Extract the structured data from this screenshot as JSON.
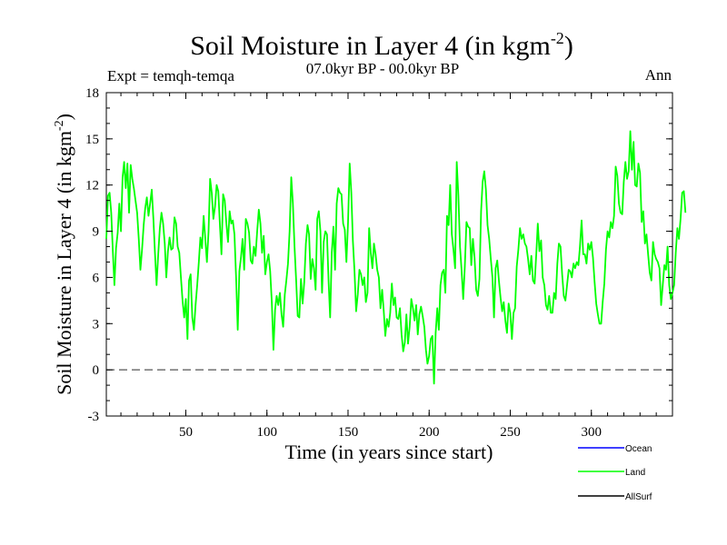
{
  "chart_data": {
    "type": "line",
    "title": "Soil Moisture in Layer 4 (in kgm",
    "title_superscript": "-2",
    "title_close": ")",
    "subtitle": "07.0kyr BP - 00.0kyr BP",
    "left_label": "Expt = temqh-temqa",
    "right_label": "Ann",
    "xlabel": "Time (in years since start)",
    "ylabel": "Soil Moisture in Layer 4 (in kgm",
    "ylabel_superscript": "-2",
    "ylabel_close": ")",
    "xlim": [
      1,
      350
    ],
    "ylim": [
      -3,
      18
    ],
    "xticks": [
      50,
      100,
      150,
      200,
      250,
      300
    ],
    "yticks": [
      -3,
      0,
      3,
      6,
      9,
      12,
      15,
      18
    ],
    "reference_line": 0,
    "legend": [
      {
        "name": "Ocean",
        "color": "#0000ff"
      },
      {
        "name": "Land",
        "color": "#00ff00"
      },
      {
        "name": "AllSurf",
        "color": "#000000"
      }
    ],
    "series": [
      {
        "name": "Land",
        "color": "#00ff00",
        "x_start": 1,
        "x_step": 1,
        "values": [
          8.5,
          11.3,
          11.5,
          10.2,
          7.8,
          5.5,
          7.9,
          8.9,
          10.8,
          9.0,
          12.5,
          13.5,
          11.8,
          13.4,
          10.2,
          13.3,
          12.4,
          11.8,
          11.0,
          10.2,
          8.5,
          6.5,
          7.8,
          9.4,
          10.5,
          11.2,
          10.0,
          10.8,
          11.7,
          9.8,
          7.5,
          5.5,
          7.5,
          9.2,
          10.2,
          9.5,
          8.2,
          6.0,
          7.7,
          8.6,
          7.8,
          7.9,
          9.9,
          9.5,
          8.0,
          7.6,
          6.0,
          4.5,
          3.4,
          4.6,
          2.0,
          5.8,
          6.2,
          3.4,
          2.6,
          4.2,
          5.5,
          7.0,
          8.6,
          7.9,
          10.0,
          8.5,
          7.0,
          9.0,
          12.4,
          11.5,
          9.8,
          10.6,
          12.0,
          11.6,
          9.4,
          7.5,
          11.4,
          11.0,
          9.5,
          8.3,
          10.3,
          9.5,
          9.7,
          8.8,
          6.0,
          2.6,
          6.4,
          7.3,
          8.5,
          6.5,
          9.8,
          9.5,
          8.9,
          7.1,
          6.9,
          8.0,
          7.4,
          9.0,
          10.4,
          9.5,
          7.6,
          8.7,
          6.2,
          7.0,
          7.5,
          6.4,
          4.4,
          1.3,
          3.9,
          4.8,
          4.2,
          5.0,
          3.6,
          2.8,
          4.9,
          5.8,
          6.9,
          9.0,
          12.5,
          10.8,
          8.0,
          5.8,
          3.5,
          3.4,
          5.9,
          4.3,
          5.7,
          8.2,
          9.4,
          8.8,
          5.9,
          7.2,
          6.6,
          5.2,
          9.8,
          10.3,
          9.0,
          5.0,
          8.3,
          9.0,
          8.8,
          5.7,
          3.4,
          7.6,
          9.3,
          6.5,
          10.8,
          11.8,
          11.5,
          11.4,
          9.5,
          9.1,
          7.0,
          9.6,
          13.4,
          11.5,
          8.4,
          6.4,
          3.8,
          4.9,
          6.5,
          6.2,
          5.5,
          6.0,
          4.4,
          5.0,
          9.2,
          7.6,
          6.6,
          8.2,
          7.5,
          6.5,
          6.0,
          4.0,
          5.2,
          3.8,
          2.2,
          3.3,
          2.8,
          3.7,
          5.6,
          4.2,
          4.7,
          3.4,
          3.3,
          4.0,
          2.3,
          1.2,
          1.8,
          3.6,
          1.7,
          2.8,
          4.6,
          4.0,
          3.2,
          4.2,
          2.3,
          3.6,
          4.1,
          3.5,
          2.8,
          1.3,
          0.4,
          0.9,
          2.0,
          2.2,
          -0.9,
          2.4,
          4.0,
          2.6,
          5.5,
          6.3,
          6.5,
          5.0,
          10.0,
          9.4,
          12.0,
          8.8,
          7.8,
          6.6,
          13.5,
          11.3,
          8.0,
          6.5,
          4.6,
          6.7,
          9.6,
          9.3,
          9.2,
          6.8,
          8.5,
          7.3,
          5.2,
          4.8,
          5.9,
          10.3,
          12.2,
          12.9,
          11.7,
          9.4,
          8.5,
          7.2,
          6.0,
          3.4,
          6.6,
          7.1,
          5.8,
          4.7,
          3.8,
          4.4,
          3.2,
          2.4,
          4.3,
          3.7,
          2.0,
          3.7,
          4.0,
          6.7,
          7.8,
          9.2,
          8.5,
          8.8,
          8.2,
          8.0,
          7.2,
          6.2,
          7.4,
          5.8,
          5.6,
          7.5,
          9.5,
          7.7,
          8.4,
          6.0,
          5.5,
          4.2,
          3.9,
          4.8,
          3.7,
          3.7,
          5.0,
          4.6,
          6.9,
          8.2,
          8.0,
          6.2,
          4.8,
          4.5,
          5.5,
          6.5,
          6.4,
          6.0,
          6.9,
          6.6,
          7.0,
          6.8,
          8.0,
          9.7,
          7.5,
          7.5,
          6.9,
          8.2,
          7.8,
          8.3,
          7.3,
          5.7,
          4.3,
          3.6,
          3.0,
          3.0,
          4.4,
          5.6,
          7.8,
          9.0,
          8.6,
          9.6,
          9.2,
          10.0,
          13.2,
          12.6,
          10.8,
          10.2,
          10.1,
          12.2,
          13.5,
          12.4,
          12.9,
          15.5,
          13.0,
          14.8,
          12.0,
          11.9,
          13.4,
          12.8,
          9.6,
          10.3,
          8.2,
          8.8,
          7.5,
          6.3,
          5.8,
          8.3,
          7.5,
          7.2,
          7.0,
          6.6,
          4.2,
          5.5,
          6.8,
          6.5,
          8.0,
          5.5,
          4.6,
          5.0,
          5.5,
          7.6,
          9.2,
          8.5,
          9.8,
          11.5,
          11.6,
          10.2
        ]
      }
    ]
  }
}
